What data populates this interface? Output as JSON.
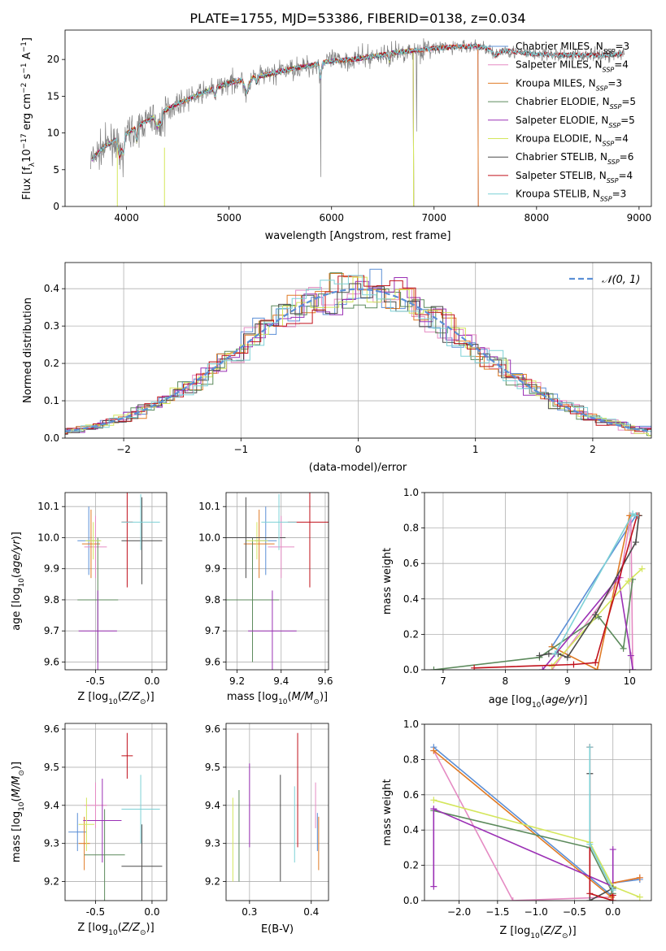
{
  "figure_title": "PLATE=1755, MJD=53386, FIBERID=0138, z=0.034",
  "colors": {
    "Chabrier MILES": "#5b8fd6",
    "Salpeter MILES": "#e58bc3",
    "Kroupa MILES": "#e07b26",
    "Chabrier ELODIE": "#5c8a5c",
    "Salpeter ELODIE": "#9b30b5",
    "Kroupa ELODIE": "#d4e65c",
    "Chabrier STELIB": "#4a4a4a",
    "Salpeter STELIB": "#c0101a",
    "Kroupa STELIB": "#7dd1d6"
  },
  "chart_data": [
    {
      "id": "spectrum",
      "type": "line",
      "xlabel": "wavelength [Angstrom, rest frame]",
      "ylabel": "Flux [fλ10⁻¹⁷ erg cm⁻² s⁻¹ A⁻¹]",
      "xlim": [
        3400,
        9120
      ],
      "ylim": [
        0,
        24
      ],
      "xticks": [
        4000,
        5000,
        6000,
        7000,
        8000,
        9000
      ],
      "yticks": [
        0,
        5,
        10,
        15,
        20
      ],
      "legend_position": "right",
      "data_series": {
        "name": "data",
        "color": "#808080"
      },
      "continuum_x": [
        3650,
        3700,
        3800,
        3950,
        4100,
        4300,
        4500,
        4800,
        5000,
        5200,
        5400,
        5600,
        5800,
        6000,
        6200,
        6400,
        6600,
        6800,
        7000,
        7200,
        7400,
        7600,
        7800,
        8000,
        8200,
        8400,
        8600,
        8800
      ],
      "continuum_y": [
        6.2,
        7.0,
        8.3,
        9.5,
        10.8,
        12.5,
        14.0,
        15.8,
        16.8,
        17.5,
        18.0,
        18.7,
        19.2,
        19.8,
        20.0,
        20.4,
        20.9,
        21.2,
        21.5,
        21.7,
        21.8,
        21.4,
        21.0,
        20.7,
        20.6,
        20.6,
        20.6,
        20.7
      ],
      "series": [
        {
          "name": "Chabrier MILES",
          "nssp": 3,
          "end": 7430
        },
        {
          "name": "Salpeter MILES",
          "nssp": 4,
          "end": 7430
        },
        {
          "name": "Kroupa MILES",
          "nssp": 3,
          "end": 7430
        },
        {
          "name": "Chabrier ELODIE",
          "nssp": 5,
          "end": 6800
        },
        {
          "name": "Salpeter ELODIE",
          "nssp": 5,
          "end": 6800
        },
        {
          "name": "Kroupa ELODIE",
          "nssp": 4,
          "end": 6800
        },
        {
          "name": "Chabrier STELIB",
          "nssp": 6,
          "end": 8850
        },
        {
          "name": "Salpeter STELIB",
          "nssp": 4,
          "end": 8850
        },
        {
          "name": "Kroupa STELIB",
          "nssp": 3,
          "end": 8850
        }
      ]
    },
    {
      "id": "residuals",
      "type": "line",
      "xlabel": "(data-model)/error",
      "ylabel": "Normed distribution",
      "xlim": [
        -2.5,
        2.5
      ],
      "ylim": [
        0,
        0.47
      ],
      "xticks": [
        -2,
        -1,
        0,
        1,
        2
      ],
      "yticks": [
        0.0,
        0.1,
        0.2,
        0.3,
        0.4
      ],
      "grid": true,
      "legend_position": "top-right",
      "reference_curve": {
        "name": "𝒩(0, 1)",
        "color": "#5b8fd6"
      },
      "bin_width": 0.1
    },
    {
      "id": "age-vs-Z",
      "type": "scatter",
      "xlabel": "Z [log10(Z/Z⊙)]",
      "ylabel": "age  [log10(age/yr)]",
      "xlim": [
        -0.77,
        0.13
      ],
      "ylim": [
        9.575,
        10.145
      ],
      "xticks": [
        -0.5,
        0.0
      ],
      "yticks": [
        9.6,
        9.7,
        9.8,
        9.9,
        10.0,
        10.1
      ],
      "grid": true,
      "points": [
        {
          "series": "Chabrier MILES",
          "x": -0.56,
          "xerr": 0.1,
          "y": 9.99,
          "yerr": 0.11
        },
        {
          "series": "Salpeter MILES",
          "x": -0.5,
          "xerr": 0.1,
          "y": 9.97,
          "yerr": 0.1
        },
        {
          "series": "Kroupa MILES",
          "x": -0.54,
          "xerr": 0.08,
          "y": 9.98,
          "yerr": 0.11
        },
        {
          "series": "Chabrier ELODIE",
          "x": -0.48,
          "xerr": 0.18,
          "y": 9.8,
          "yerr": 0.2
        },
        {
          "series": "Salpeter ELODIE",
          "x": -0.48,
          "xerr": 0.17,
          "y": 9.7,
          "yerr": 0.13
        },
        {
          "series": "Kroupa ELODIE",
          "x": -0.52,
          "xerr": 0.07,
          "y": 9.99,
          "yerr": 0.06
        },
        {
          "series": "Chabrier STELIB",
          "x": -0.09,
          "xerr": 0.18,
          "y": 9.99,
          "yerr": 0.14
        },
        {
          "series": "Salpeter STELIB",
          "x": -0.22,
          "xerr": 0.05,
          "y": 10.05,
          "yerr": 0.21
        },
        {
          "series": "Kroupa STELIB",
          "x": -0.1,
          "xerr": 0.17,
          "y": 10.05,
          "yerr": 0.09
        }
      ]
    },
    {
      "id": "age-vs-mass",
      "type": "scatter",
      "xlabel": "mass [log10(M/M⊙)]",
      "ylabel": "",
      "xlim": [
        9.15,
        9.615
      ],
      "ylim": [
        9.575,
        10.145
      ],
      "xticks": [
        9.2,
        9.4,
        9.6
      ],
      "yticks": [
        9.6,
        9.7,
        9.8,
        9.9,
        10.0,
        10.1
      ],
      "grid": true,
      "points": [
        {
          "series": "Chabrier MILES",
          "x": 9.33,
          "xerr": 0.05,
          "y": 9.99,
          "yerr": 0.11
        },
        {
          "series": "Salpeter MILES",
          "x": 9.4,
          "xerr": 0.06,
          "y": 9.97,
          "yerr": 0.1
        },
        {
          "series": "Kroupa MILES",
          "x": 9.3,
          "xerr": 0.07,
          "y": 9.98,
          "yerr": 0.11
        },
        {
          "series": "Chabrier ELODIE",
          "x": 9.27,
          "xerr": 0.12,
          "y": 9.8,
          "yerr": 0.2
        },
        {
          "series": "Salpeter ELODIE",
          "x": 9.36,
          "xerr": 0.11,
          "y": 9.7,
          "yerr": 0.13
        },
        {
          "series": "Kroupa ELODIE",
          "x": 9.29,
          "xerr": 0.05,
          "y": 9.99,
          "yerr": 0.06
        },
        {
          "series": "Chabrier STELIB",
          "x": 9.24,
          "xerr": 0.18,
          "y": 10.0,
          "yerr": 0.13
        },
        {
          "series": "Salpeter STELIB",
          "x": 9.53,
          "xerr": 0.1,
          "y": 10.05,
          "yerr": 0.21
        },
        {
          "series": "Kroupa STELIB",
          "x": 9.39,
          "xerr": 0.08,
          "y": 10.05,
          "yerr": 0.09
        }
      ]
    },
    {
      "id": "mass-weight-vs-age",
      "type": "line",
      "xlabel": "age  [log10(age/yr)]",
      "ylabel": "mass weight",
      "xlim": [
        6.7,
        10.35
      ],
      "ylim": [
        0,
        1
      ],
      "xticks": [
        7,
        8,
        9,
        10
      ],
      "yticks": [
        0.0,
        0.2,
        0.4,
        0.6,
        0.8,
        1.0
      ],
      "grid": true,
      "series": [
        {
          "name": "Chabrier MILES",
          "x": [
            8.75,
            10.1
          ],
          "y": [
            0.13,
            0.87
          ]
        },
        {
          "name": "Salpeter MILES",
          "x": [
            8.75,
            9.85,
            10.02,
            10.05
          ],
          "y": [
            0.0,
            0.52,
            0.87,
            0.0
          ]
        },
        {
          "name": "Kroupa MILES",
          "x": [
            8.75,
            9.48,
            10.0,
            10.15
          ],
          "y": [
            0.13,
            0.0,
            0.87,
            0.87
          ]
        },
        {
          "name": "Chabrier ELODIE",
          "x": [
            6.85,
            8.55,
            9.5,
            9.9,
            10.05
          ],
          "y": [
            0.0,
            0.07,
            0.3,
            0.12,
            0.51
          ]
        },
        {
          "name": "Salpeter ELODIE",
          "x": [
            8.6,
            9.82,
            10.02,
            10.05
          ],
          "y": [
            0.0,
            0.52,
            0.08,
            0.0
          ]
        },
        {
          "name": "Kroupa ELODIE",
          "x": [
            8.75,
            9.98,
            10.2
          ],
          "y": [
            0.02,
            0.5,
            0.57
          ]
        },
        {
          "name": "Chabrier STELIB",
          "x": [
            8.55,
            8.7,
            8.85,
            9.0,
            9.45,
            10.1,
            10.15
          ],
          "y": [
            0.08,
            0.09,
            0.09,
            0.07,
            0.31,
            0.72,
            0.87
          ]
        },
        {
          "name": "Salpeter STELIB",
          "x": [
            7.5,
            9.1,
            9.45,
            10.12
          ],
          "y": [
            0.01,
            0.03,
            0.04,
            0.87
          ]
        },
        {
          "name": "Kroupa STELIB",
          "x": [
            8.8,
            10.05,
            10.1
          ],
          "y": [
            0.09,
            0.88,
            0.87
          ]
        }
      ]
    },
    {
      "id": "mass-vs-Z",
      "type": "scatter",
      "xlabel": "Z [log10(Z/Z⊙)]",
      "ylabel": "mass [log10(M/M⊙)]",
      "xlim": [
        -0.77,
        0.13
      ],
      "ylim": [
        9.15,
        9.615
      ],
      "xticks": [
        -0.5,
        0.0
      ],
      "yticks": [
        9.2,
        9.3,
        9.4,
        9.5,
        9.6
      ],
      "grid": true,
      "points": [
        {
          "series": "Chabrier MILES",
          "x": -0.66,
          "xerr": 0.08,
          "y": 9.33,
          "yerr": 0.05
        },
        {
          "series": "Salpeter MILES",
          "x": -0.5,
          "xerr": 0.1,
          "y": 9.4,
          "yerr": 0.06
        },
        {
          "series": "Kroupa MILES",
          "x": -0.6,
          "xerr": 0.05,
          "y": 9.3,
          "yerr": 0.07
        },
        {
          "series": "Chabrier ELODIE",
          "x": -0.42,
          "xerr": 0.18,
          "y": 9.27,
          "yerr": 0.12
        },
        {
          "series": "Salpeter ELODIE",
          "x": -0.44,
          "xerr": 0.17,
          "y": 9.36,
          "yerr": 0.11
        },
        {
          "series": "Kroupa ELODIE",
          "x": -0.58,
          "xerr": 0.07,
          "y": 9.35,
          "yerr": 0.07
        },
        {
          "series": "Chabrier STELIB",
          "x": -0.09,
          "xerr": 0.18,
          "y": 9.24,
          "yerr": 0.11
        },
        {
          "series": "Salpeter STELIB",
          "x": -0.22,
          "xerr": 0.05,
          "y": 9.53,
          "yerr": 0.06
        },
        {
          "series": "Kroupa STELIB",
          "x": -0.1,
          "xerr": 0.17,
          "y": 9.39,
          "yerr": 0.09
        }
      ]
    },
    {
      "id": "mass-vs-ebv",
      "type": "scatter",
      "xlabel": "E(B-V)",
      "ylabel": "",
      "xlim": [
        0.262,
        0.428
      ],
      "ylim": [
        9.15,
        9.615
      ],
      "xticks": [
        0.3,
        0.4
      ],
      "yticks": [
        9.2,
        9.3,
        9.4,
        9.5,
        9.6
      ],
      "grid": true,
      "points": [
        {
          "series": "Chabrier MILES",
          "x": 0.41,
          "y": 9.33,
          "yerr": 0.05
        },
        {
          "series": "Salpeter MILES",
          "x": 0.407,
          "y": 9.4,
          "yerr": 0.06
        },
        {
          "series": "Kroupa MILES",
          "x": 0.412,
          "y": 9.3,
          "yerr": 0.07
        },
        {
          "series": "Chabrier ELODIE",
          "x": 0.283,
          "y": 9.32,
          "yerr": 0.12
        },
        {
          "series": "Salpeter ELODIE",
          "x": 0.3,
          "y": 9.4,
          "yerr": 0.11
        },
        {
          "series": "Kroupa ELODIE",
          "x": 0.273,
          "y": 9.31,
          "yerr": 0.11
        },
        {
          "series": "Chabrier STELIB",
          "x": 0.35,
          "y": 9.34,
          "yerr": 0.14
        },
        {
          "series": "Salpeter STELIB",
          "x": 0.378,
          "y": 9.44,
          "yerr": 0.15
        },
        {
          "series": "Kroupa STELIB",
          "x": 0.373,
          "y": 9.35,
          "yerr": 0.1
        }
      ]
    },
    {
      "id": "mass-weight-vs-Z",
      "type": "line",
      "xlabel": "Z [log10(Z/Z⊙)]",
      "ylabel": "mass weight",
      "xlim": [
        -2.45,
        0.5
      ],
      "ylim": [
        0,
        1
      ],
      "xticks": [
        -2.0,
        -1.5,
        -1.0,
        -0.5,
        0.0
      ],
      "yticks": [
        0.0,
        0.2,
        0.4,
        0.6,
        0.8,
        1.0
      ],
      "grid": true,
      "series": [
        {
          "name": "Chabrier MILES",
          "x": [
            -2.33,
            -0.02,
            0.0,
            0.35
          ],
          "y": [
            0.87,
            0.03,
            0.1,
            0.12
          ]
        },
        {
          "name": "Salpeter MILES",
          "x": [
            -2.33,
            -1.3,
            -0.02,
            0.0,
            0.35
          ],
          "y": [
            0.85,
            0.0,
            0.02,
            0.1,
            0.13
          ]
        },
        {
          "name": "Kroupa MILES",
          "x": [
            -2.33,
            -0.02,
            0.0,
            0.35
          ],
          "y": [
            0.85,
            0.02,
            0.1,
            0.13
          ]
        },
        {
          "name": "Chabrier ELODIE",
          "x": [
            -2.33,
            -0.3,
            0.0
          ],
          "y": [
            0.51,
            0.3,
            0.04
          ]
        },
        {
          "name": "Salpeter ELODIE",
          "x": [
            -2.33,
            -2.33,
            0.0,
            0.0
          ],
          "y": [
            0.08,
            0.52,
            0.08,
            0.29
          ]
        },
        {
          "name": "Kroupa ELODIE",
          "x": [
            -2.33,
            -0.3,
            0.0,
            0.35
          ],
          "y": [
            0.57,
            0.33,
            0.08,
            0.02
          ]
        },
        {
          "name": "Chabrier STELIB",
          "x": [
            -0.3,
            -0.3,
            0.0
          ],
          "y": [
            0.72,
            0.0,
            0.07
          ]
        },
        {
          "name": "Salpeter STELIB",
          "x": [
            -0.3,
            -0.3,
            0.0,
            0.0
          ],
          "y": [
            0.87,
            0.04,
            0.0,
            0.03
          ]
        },
        {
          "name": "Kroupa STELIB",
          "x": [
            -0.3,
            -0.3,
            0.0
          ],
          "y": [
            0.87,
            0.32,
            0.06
          ]
        }
      ]
    }
  ]
}
